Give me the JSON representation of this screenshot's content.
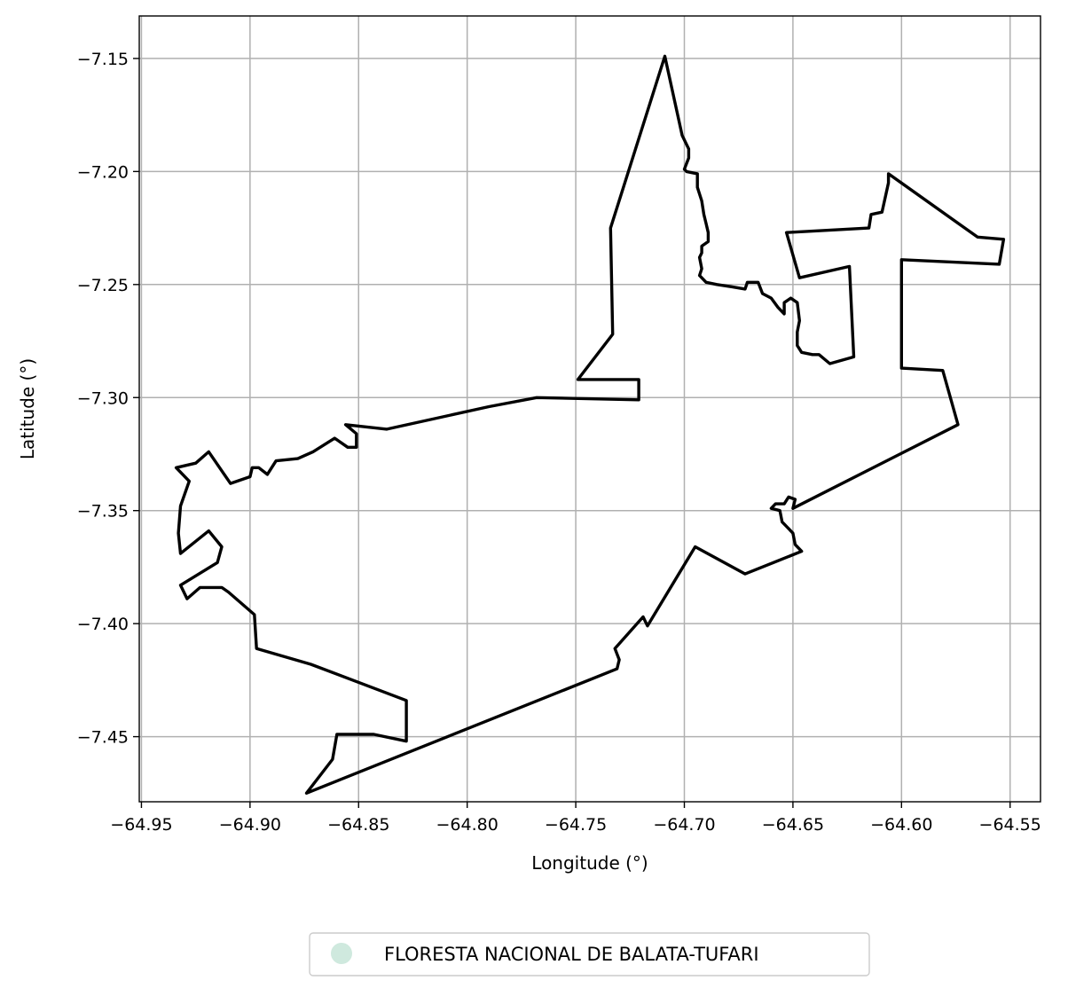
{
  "chart_data": {
    "type": "map",
    "xlabel": "Longitude (°)",
    "ylabel": "Latitude (°)",
    "xlim": [
      -64.951,
      -64.536
    ],
    "ylim": [
      -7.4788,
      -7.1312
    ],
    "grid": true,
    "xticks": [
      -64.95,
      -64.9,
      -64.85,
      -64.8,
      -64.75,
      -64.7,
      -64.65,
      -64.6,
      -64.55
    ],
    "xtick_labels": [
      "−64.95",
      "−64.90",
      "−64.85",
      "−64.80",
      "−64.75",
      "−64.70",
      "−64.65",
      "−64.60",
      "−64.55"
    ],
    "yticks": [
      -7.15,
      -7.2,
      -7.25,
      -7.3,
      -7.35,
      -7.4,
      -7.45
    ],
    "ytick_labels": [
      "−7.15",
      "−7.20",
      "−7.25",
      "−7.30",
      "−7.35",
      "−7.40",
      "−7.45"
    ],
    "legend_position": "bottom-center",
    "series": [
      {
        "name": "FLORESTA NACIONAL DE BALATA-TUFARI",
        "fill_color": "#cfe9de",
        "stroke_color": "#000000",
        "boundary": [
          [
            -64.709,
            -7.149
          ],
          [
            -64.701,
            -7.184
          ],
          [
            -64.698,
            -7.19
          ],
          [
            -64.698,
            -7.194
          ],
          [
            -64.7,
            -7.199
          ],
          [
            -64.699,
            -7.2
          ],
          [
            -64.694,
            -7.201
          ],
          [
            -64.694,
            -7.207
          ],
          [
            -64.692,
            -7.213
          ],
          [
            -64.691,
            -7.219
          ],
          [
            -64.69,
            -7.223
          ],
          [
            -64.689,
            -7.227
          ],
          [
            -64.689,
            -7.231
          ],
          [
            -64.692,
            -7.233
          ],
          [
            -64.692,
            -7.236
          ],
          [
            -64.693,
            -7.238
          ],
          [
            -64.692,
            -7.243
          ],
          [
            -64.693,
            -7.246
          ],
          [
            -64.69,
            -7.249
          ],
          [
            -64.685,
            -7.25
          ],
          [
            -64.678,
            -7.251
          ],
          [
            -64.672,
            -7.252
          ],
          [
            -64.671,
            -7.249
          ],
          [
            -64.666,
            -7.249
          ],
          [
            -64.664,
            -7.254
          ],
          [
            -64.66,
            -7.256
          ],
          [
            -64.657,
            -7.26
          ],
          [
            -64.654,
            -7.263
          ],
          [
            -64.654,
            -7.258
          ],
          [
            -64.651,
            -7.256
          ],
          [
            -64.648,
            -7.258
          ],
          [
            -64.647,
            -7.266
          ],
          [
            -64.648,
            -7.271
          ],
          [
            -64.648,
            -7.277
          ],
          [
            -64.646,
            -7.28
          ],
          [
            -64.641,
            -7.281
          ],
          [
            -64.638,
            -7.281
          ],
          [
            -64.633,
            -7.285
          ],
          [
            -64.622,
            -7.282
          ],
          [
            -64.624,
            -7.242
          ],
          [
            -64.647,
            -7.247
          ],
          [
            -64.653,
            -7.227
          ],
          [
            -64.615,
            -7.225
          ],
          [
            -64.614,
            -7.219
          ],
          [
            -64.609,
            -7.218
          ],
          [
            -64.606,
            -7.205
          ],
          [
            -64.606,
            -7.201
          ],
          [
            -64.565,
            -7.229
          ],
          [
            -64.553,
            -7.23
          ],
          [
            -64.555,
            -7.241
          ],
          [
            -64.6,
            -7.239
          ],
          [
            -64.6,
            -7.287
          ],
          [
            -64.581,
            -7.288
          ],
          [
            -64.574,
            -7.312
          ],
          [
            -64.65,
            -7.349
          ],
          [
            -64.649,
            -7.345
          ],
          [
            -64.652,
            -7.344
          ],
          [
            -64.654,
            -7.347
          ],
          [
            -64.658,
            -7.347
          ],
          [
            -64.66,
            -7.349
          ],
          [
            -64.656,
            -7.35
          ],
          [
            -64.655,
            -7.355
          ],
          [
            -64.653,
            -7.357
          ],
          [
            -64.65,
            -7.36
          ],
          [
            -64.649,
            -7.365
          ],
          [
            -64.646,
            -7.368
          ],
          [
            -64.672,
            -7.378
          ],
          [
            -64.695,
            -7.366
          ],
          [
            -64.717,
            -7.401
          ],
          [
            -64.719,
            -7.397
          ],
          [
            -64.732,
            -7.411
          ],
          [
            -64.73,
            -7.416
          ],
          [
            -64.731,
            -7.42
          ],
          [
            -64.874,
            -7.475
          ],
          [
            -64.862,
            -7.46
          ],
          [
            -64.86,
            -7.449
          ],
          [
            -64.843,
            -7.449
          ],
          [
            -64.828,
            -7.452
          ],
          [
            -64.828,
            -7.434
          ],
          [
            -64.872,
            -7.418
          ],
          [
            -64.897,
            -7.411
          ],
          [
            -64.898,
            -7.396
          ],
          [
            -64.91,
            -7.386
          ],
          [
            -64.913,
            -7.384
          ],
          [
            -64.923,
            -7.384
          ],
          [
            -64.929,
            -7.389
          ],
          [
            -64.932,
            -7.383
          ],
          [
            -64.915,
            -7.373
          ],
          [
            -64.913,
            -7.366
          ],
          [
            -64.919,
            -7.359
          ],
          [
            -64.932,
            -7.369
          ],
          [
            -64.933,
            -7.36
          ],
          [
            -64.932,
            -7.348
          ],
          [
            -64.928,
            -7.337
          ],
          [
            -64.934,
            -7.331
          ],
          [
            -64.925,
            -7.329
          ],
          [
            -64.919,
            -7.324
          ],
          [
            -64.909,
            -7.338
          ],
          [
            -64.9,
            -7.335
          ],
          [
            -64.899,
            -7.331
          ],
          [
            -64.896,
            -7.331
          ],
          [
            -64.892,
            -7.334
          ],
          [
            -64.888,
            -7.328
          ],
          [
            -64.878,
            -7.327
          ],
          [
            -64.871,
            -7.324
          ],
          [
            -64.861,
            -7.318
          ],
          [
            -64.855,
            -7.322
          ],
          [
            -64.851,
            -7.322
          ],
          [
            -64.851,
            -7.316
          ],
          [
            -64.856,
            -7.312
          ],
          [
            -64.837,
            -7.314
          ],
          [
            -64.79,
            -7.304
          ],
          [
            -64.768,
            -7.3
          ],
          [
            -64.721,
            -7.301
          ],
          [
            -64.721,
            -7.292
          ],
          [
            -64.749,
            -7.292
          ],
          [
            -64.733,
            -7.272
          ],
          [
            -64.734,
            -7.225
          ],
          [
            -64.709,
            -7.149
          ]
        ]
      }
    ]
  }
}
